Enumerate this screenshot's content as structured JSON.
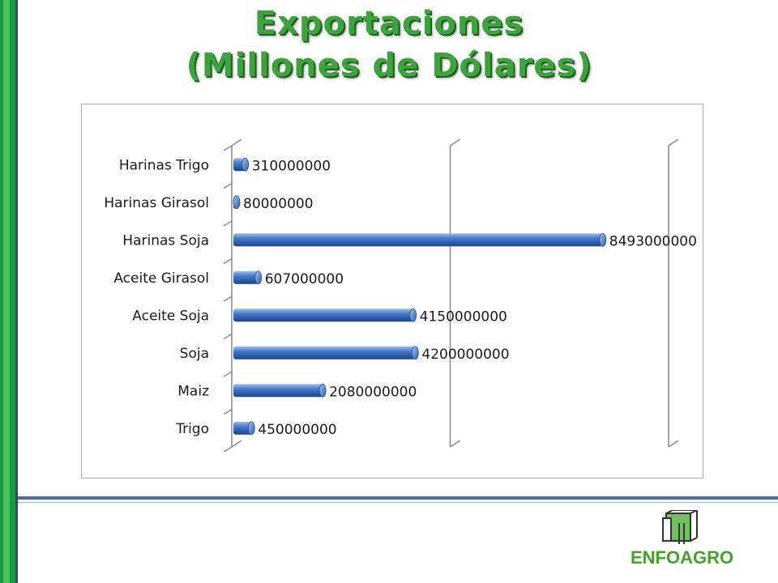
{
  "slide": {
    "title_line1": "Exportaciones",
    "title_line2": "(Millones de Dólares)",
    "logo_text": "ENFOAGRO",
    "colors": {
      "accent_green": "#3ea33e",
      "bar_blue": "#3f72bf",
      "frame_green": "#1b9a3c"
    }
  },
  "chart_data": {
    "type": "bar",
    "orientation": "horizontal",
    "style": "3d-cylinder",
    "title": "",
    "xlabel": "",
    "ylabel": "",
    "categories": [
      "Harinas Trigo",
      "Harinas Girasol",
      "Harinas Soja",
      "Aceite Girasol",
      "Aceite Soja",
      "Soja",
      "Maiz",
      "Trigo"
    ],
    "values": [
      310000000,
      80000000,
      8493000000,
      607000000,
      4150000000,
      4200000000,
      2080000000,
      450000000
    ],
    "data_labels": [
      "310000000",
      "80000000",
      "8493000000",
      "607000000",
      "4150000000",
      "4200000000",
      "2080000000",
      "450000000"
    ],
    "xlim": [
      0,
      10000000000
    ],
    "gridlines": [
      0,
      5000000000,
      10000000000
    ],
    "grid": true,
    "legend": "none"
  }
}
